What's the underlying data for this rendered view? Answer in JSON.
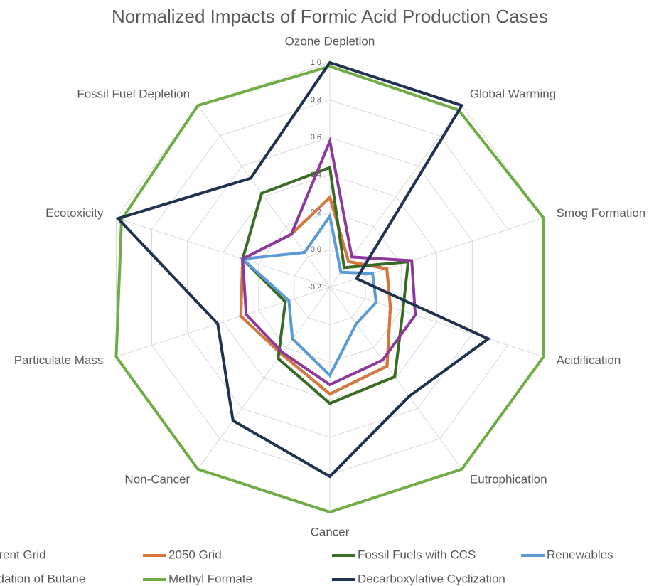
{
  "chart_data": {
    "type": "radar",
    "title": "Normalized Impacts of Formic Acid Production Cases",
    "categories": [
      "Ozone Depletion",
      "Global Warming",
      "Smog Formation",
      "Acidification",
      "Eutrophication",
      "Cancer",
      "Non-Cancer",
      "Particulate Mass",
      "Ecotoxicity",
      "Fossil Fuel Depletion"
    ],
    "ylim": [
      -0.2,
      1.0
    ],
    "yticks": [
      {
        "value": -0.2,
        "label": "-0.2"
      },
      {
        "value": 0,
        "label": "0.0"
      },
      0.2,
      0.4,
      0.6,
      0.8,
      {
        "value": 1,
        "label": "1.0"
      }
    ],
    "grid": true,
    "legend": "bottom",
    "series": [
      {
        "name": "Current Grid",
        "color": "#4472c4",
        "values": [
          0.28,
          -0.03,
          0.12,
          0.14,
          0.32,
          0.37,
          0.24,
          0.3,
          0.29,
          0.15
        ]
      },
      {
        "name": "2050 Grid",
        "color": "#d9773b",
        "values": [
          0.28,
          -0.03,
          0.12,
          0.14,
          0.32,
          0.37,
          0.24,
          0.3,
          0.29,
          0.15
        ]
      },
      {
        "name": "Fossil Fuels with CCS",
        "color": "#3a6b24",
        "values": [
          0.44,
          -0.07,
          0.24,
          0.21,
          0.39,
          0.42,
          0.27,
          0.05,
          0.29,
          0.42
        ]
      },
      {
        "name": "Renewables",
        "color": "#5b9bd5",
        "values": [
          0.18,
          -0.1,
          0.04,
          0.06,
          0.04,
          0.27,
          0.14,
          0.03,
          0.29,
          0.03
        ]
      },
      {
        "name": "Oxidation of Butane",
        "color": "#8e3a9d",
        "values": [
          0.58,
          0.0,
          0.26,
          0.28,
          0.28,
          0.32,
          0.23,
          0.27,
          0.29,
          0.15
        ]
      },
      {
        "name": "Methyl Formate",
        "color": "#70ad47",
        "values": [
          0.98,
          0.97,
          1.0,
          1.0,
          1.0,
          1.0,
          1.0,
          1.0,
          0.97,
          1.0
        ]
      },
      {
        "name": "Decarboxylative Cyclization",
        "color": "#1f3350",
        "values": [
          1.0,
          1.0,
          -0.05,
          0.69,
          0.52,
          0.81,
          0.68,
          0.43,
          0.99,
          0.52
        ]
      }
    ]
  }
}
